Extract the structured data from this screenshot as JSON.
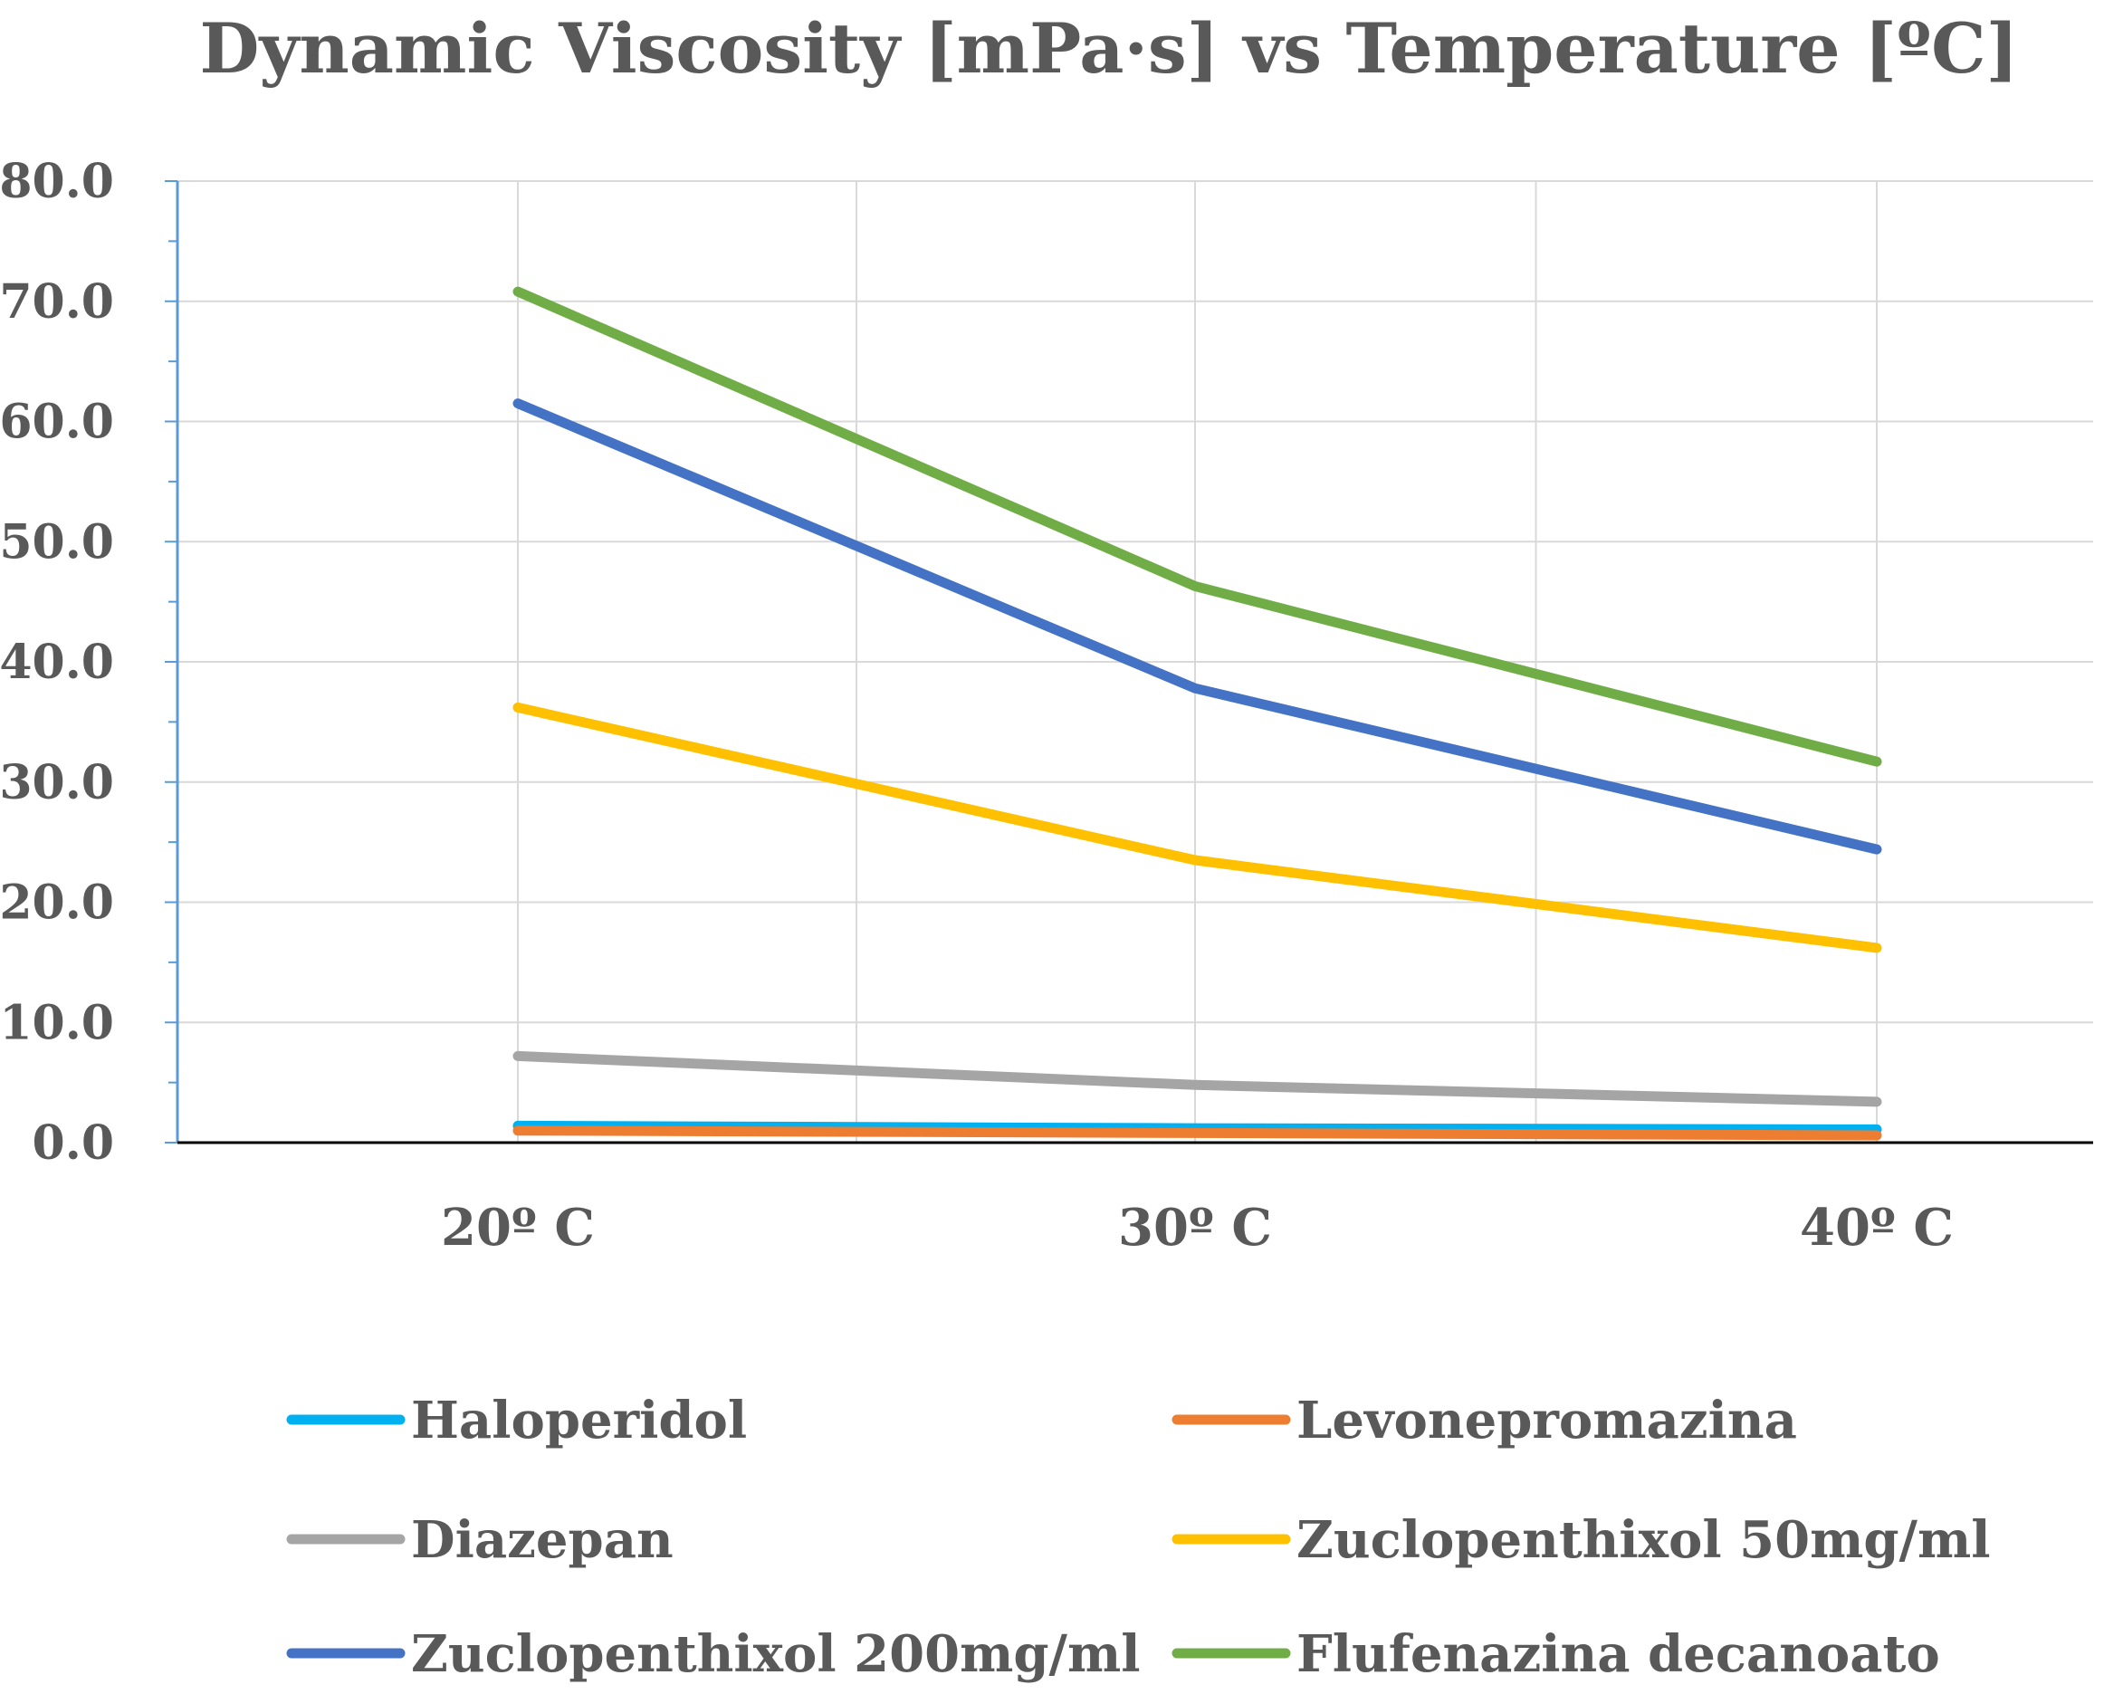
{
  "chart_data": {
    "type": "line",
    "title": "Dynamic Viscosity [mPa·s] vs Temperature [ºC]",
    "xlabel": "",
    "ylabel": "",
    "categories": [
      "20º C",
      "30º C",
      "40º C"
    ],
    "ylim": [
      0,
      80
    ],
    "yticks": [
      "0.0",
      "10.0",
      "20.0",
      "30.0",
      "40.0",
      "50.0",
      "60.0",
      "70.0",
      "80.0"
    ],
    "grid": true,
    "legend_position": "bottom",
    "series": [
      {
        "name": "Haloperidol",
        "color": "#00B0F0",
        "values": [
          1.4,
          1.2,
          1.1
        ]
      },
      {
        "name": "Levonepromazina",
        "color": "#ED7D31",
        "values": [
          1.0,
          0.8,
          0.6
        ]
      },
      {
        "name": "Diazepan",
        "color": "#A5A5A5",
        "values": [
          7.2,
          4.8,
          3.4
        ]
      },
      {
        "name": "Zuclopenthixol 50mg/ml",
        "color": "#FFC000",
        "values": [
          36.2,
          23.5,
          16.2
        ]
      },
      {
        "name": "Zuclopenthixol 200mg/ml",
        "color": "#4472C4",
        "values": [
          61.5,
          37.8,
          24.4
        ]
      },
      {
        "name": "Flufenazina decanoato",
        "color": "#70AD47",
        "values": [
          70.8,
          46.3,
          31.7
        ]
      }
    ]
  }
}
